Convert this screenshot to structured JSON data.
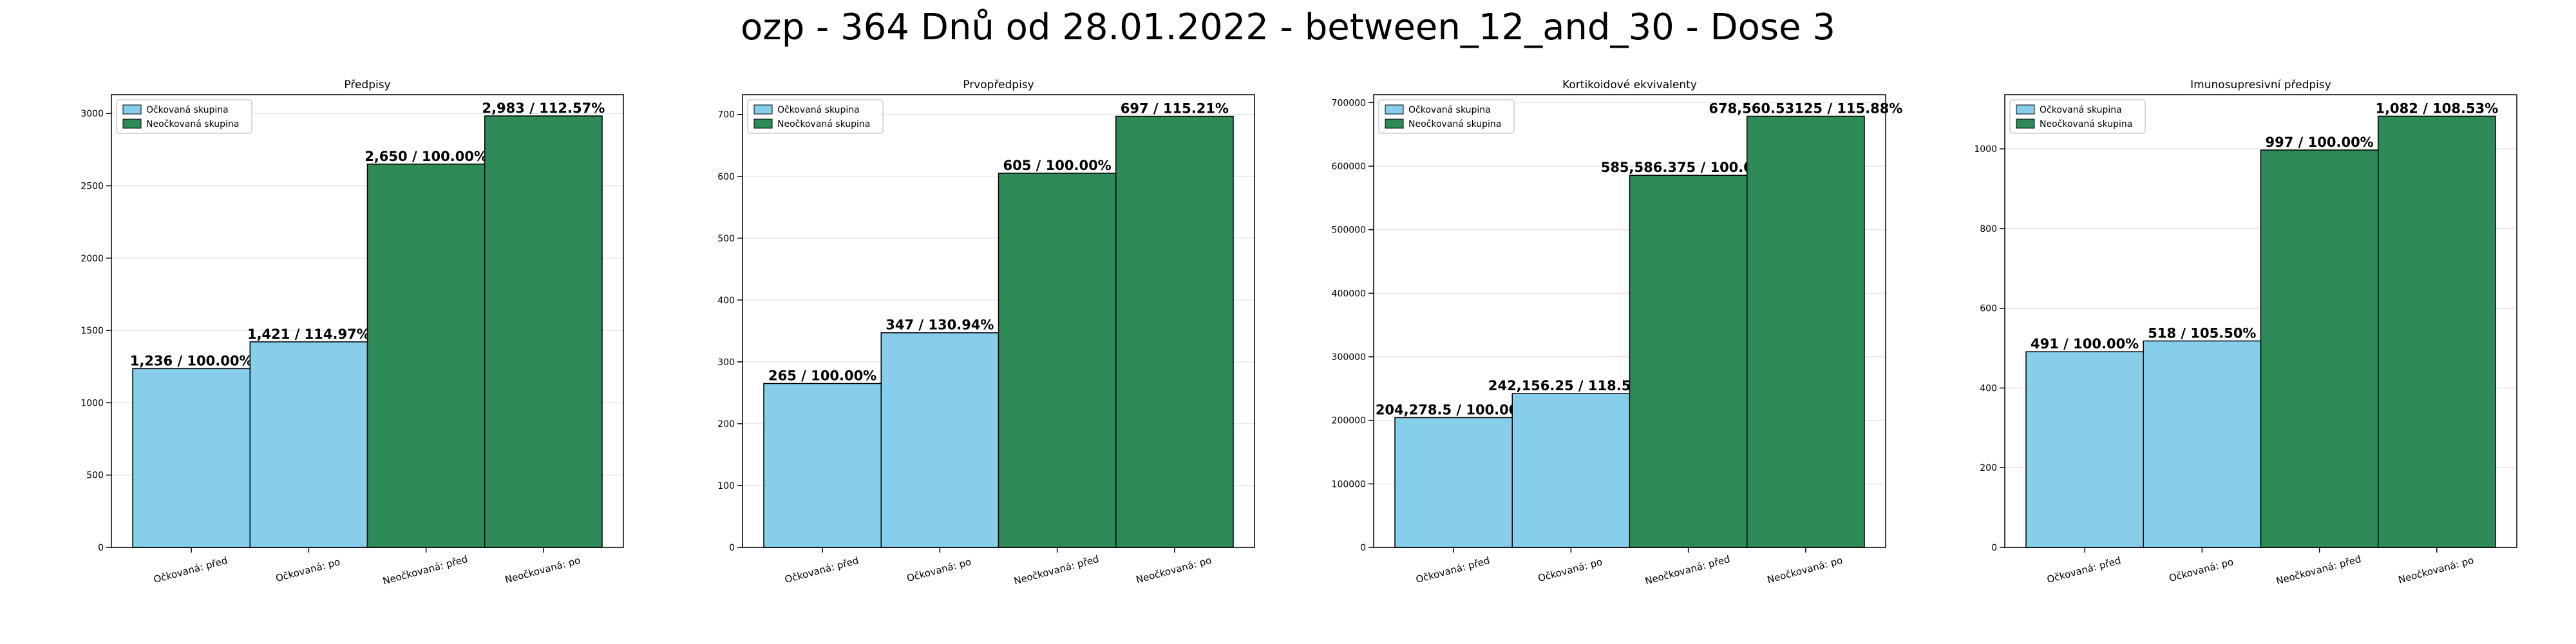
{
  "suptitle": "ozp - 364 Dnů od 28.01.2022 - between_12_and_30 - Dose 3",
  "colors": {
    "vaccinated": "#87CEEB",
    "unvaccinated": "#2E8B57",
    "edge": "#000000",
    "grid": "#e6e6e6"
  },
  "legend_position": "top-left",
  "grid": true,
  "chart_data": [
    {
      "type": "bar",
      "title": "Předpisy",
      "categories": [
        "Očkovaná: před",
        "Očkovaná: po",
        "Neočkovaná: před",
        "Neočkovaná: po"
      ],
      "values": [
        1236,
        1421,
        2650,
        2983
      ],
      "bar_labels": [
        "1,236 / 100.00%",
        "1,421 / 114.97%",
        "2,650 / 100.00%",
        "2,983 / 112.57%"
      ],
      "groups": [
        "vaccinated",
        "vaccinated",
        "unvaccinated",
        "unvaccinated"
      ],
      "legend": [
        "Očkovaná skupina",
        "Neočkovaná skupina"
      ],
      "ylim": [
        0,
        3130
      ],
      "yticks": [
        0,
        500,
        1000,
        1500,
        2000,
        2500,
        3000
      ],
      "ytick_labels": [
        "0",
        "500",
        "1000",
        "1500",
        "2000",
        "2500",
        "3000"
      ]
    },
    {
      "type": "bar",
      "title": "Prvopředpisy",
      "categories": [
        "Očkovaná: před",
        "Očkovaná: po",
        "Neočkovaná: před",
        "Neočkovaná: po"
      ],
      "values": [
        265,
        347,
        605,
        697
      ],
      "bar_labels": [
        "265 / 100.00%",
        "347 / 130.94%",
        "605 / 100.00%",
        "697 / 115.21%"
      ],
      "groups": [
        "vaccinated",
        "vaccinated",
        "unvaccinated",
        "unvaccinated"
      ],
      "legend": [
        "Očkovaná skupina",
        "Neočkovaná skupina"
      ],
      "ylim": [
        0,
        732
      ],
      "yticks": [
        0,
        100,
        200,
        300,
        400,
        500,
        600,
        700
      ],
      "ytick_labels": [
        "0",
        "100",
        "200",
        "300",
        "400",
        "500",
        "600",
        "700"
      ]
    },
    {
      "type": "bar",
      "title": "Kortikoidové ekvivalenty",
      "categories": [
        "Očkovaná: před",
        "Očkovaná: po",
        "Neočkovaná: před",
        "Neočkovaná: po"
      ],
      "values": [
        204278.5,
        242156.25,
        585586.375,
        678560.53125
      ],
      "bar_labels": [
        "204,278.5 / 100.00%",
        "242,156.25 / 118.54%",
        "585,586.375 / 100.00%",
        "678,560.53125 / 115.88%"
      ],
      "groups": [
        "vaccinated",
        "vaccinated",
        "unvaccinated",
        "unvaccinated"
      ],
      "legend": [
        "Očkovaná skupina",
        "Neočkovaná skupina"
      ],
      "ylim": [
        0,
        712500
      ],
      "yticks": [
        0,
        100000,
        200000,
        300000,
        400000,
        500000,
        600000,
        700000
      ],
      "ytick_labels": [
        "0",
        "100000",
        "200000",
        "300000",
        "400000",
        "500000",
        "600000",
        "700000"
      ]
    },
    {
      "type": "bar",
      "title": "Imunosupresivní předpisy",
      "categories": [
        "Očkovaná: před",
        "Očkovaná: po",
        "Neočkovaná: před",
        "Neočkovaná: po"
      ],
      "values": [
        491,
        518,
        997,
        1082
      ],
      "bar_labels": [
        "491 / 100.00%",
        "518 / 105.50%",
        "997 / 100.00%",
        "1,082 / 108.53%"
      ],
      "groups": [
        "vaccinated",
        "vaccinated",
        "unvaccinated",
        "unvaccinated"
      ],
      "legend": [
        "Očkovaná skupina",
        "Neočkovaná skupina"
      ],
      "ylim": [
        0,
        1136
      ],
      "yticks": [
        0,
        200,
        400,
        600,
        800,
        1000
      ],
      "ytick_labels": [
        "0",
        "200",
        "400",
        "600",
        "800",
        "1000"
      ]
    }
  ]
}
